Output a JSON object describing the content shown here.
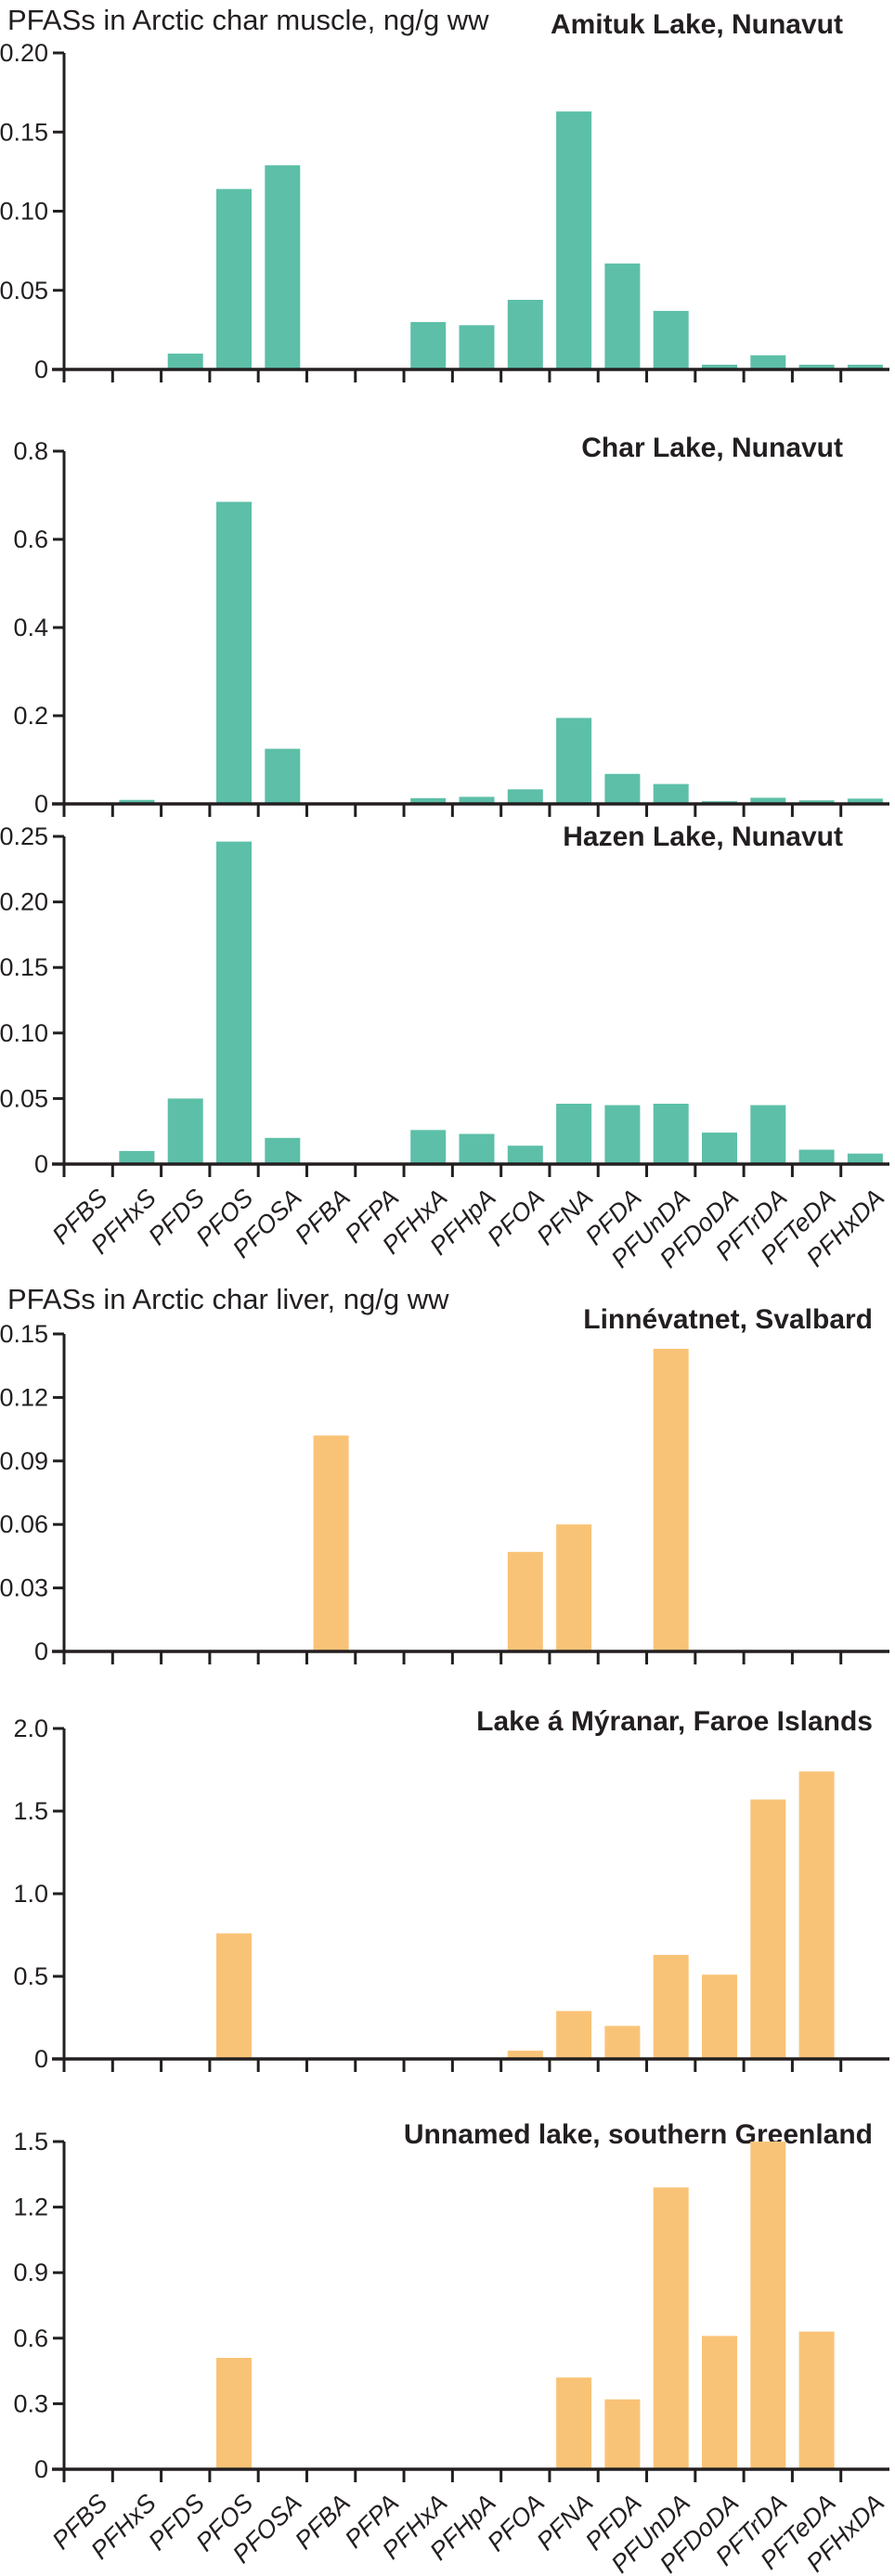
{
  "sections": [
    {
      "title": "PFASs in Arctic char muscle, ng/g ww"
    },
    {
      "title": "PFASs in Arctic char liver, ng/g ww"
    }
  ],
  "categories": [
    "PFBS",
    "PFHxS",
    "PFDS",
    "PFOS",
    "PFOSA",
    "PFBA",
    "PFPA",
    "PFHxA",
    "PFHpA",
    "PFOA",
    "PFNA",
    "PFDA",
    "PFUnDA",
    "PFDoDA",
    "PFTrDA",
    "PFTeDA",
    "PFHxDA"
  ],
  "colors": {
    "muscle_bar": "#5dbfa7",
    "liver_bar": "#f9c377",
    "axis": "#231f20",
    "text": "#231f20",
    "background": "#ffffff"
  },
  "chart_data": [
    {
      "type": "bar",
      "title": "Amituk Lake, Nunavut",
      "tissue": "muscle",
      "ylabel": "PFASs in Arctic char muscle, ng/g ww",
      "bar_color": "#5dbfa7",
      "ymax": 0.2,
      "ylim": [
        0,
        0.2
      ],
      "yticks": [
        0,
        0.05,
        0.1,
        0.15,
        0.2
      ],
      "ytick_labels": [
        "0",
        "0.05",
        "0.10",
        "0.15",
        "0.20"
      ],
      "show_x_labels": false,
      "values": [
        0,
        0,
        0.01,
        0.114,
        0.129,
        0,
        0,
        0.03,
        0.028,
        0.044,
        0.163,
        0.067,
        0.037,
        0.003,
        0.009,
        0.003,
        0.003
      ]
    },
    {
      "type": "bar",
      "title": "Char Lake, Nunavut",
      "tissue": "muscle",
      "bar_color": "#5dbfa7",
      "ymax": 0.8,
      "ylim": [
        0,
        0.8
      ],
      "yticks": [
        0,
        0.2,
        0.4,
        0.6,
        0.8
      ],
      "ytick_labels": [
        "0",
        "0.2",
        "0.4",
        "0.6",
        "0.8"
      ],
      "show_x_labels": false,
      "values": [
        0,
        0.009,
        0,
        0.685,
        0.125,
        0,
        0,
        0.013,
        0.016,
        0.033,
        0.195,
        0.068,
        0.045,
        0.006,
        0.014,
        0.008,
        0.012
      ]
    },
    {
      "type": "bar",
      "title": "Hazen Lake, Nunavut",
      "tissue": "muscle",
      "bar_color": "#5dbfa7",
      "ymax": 0.25,
      "ylim": [
        0,
        0.25
      ],
      "yticks": [
        0,
        0.05,
        0.1,
        0.15,
        0.2,
        0.25
      ],
      "ytick_labels": [
        "0",
        "0.05",
        "0.10",
        "0.15",
        "0.20",
        "0.25"
      ],
      "show_x_labels": true,
      "values": [
        0,
        0.01,
        0.05,
        0.246,
        0.02,
        0,
        0,
        0.026,
        0.023,
        0.014,
        0.046,
        0.045,
        0.046,
        0.024,
        0.045,
        0.011,
        0.008
      ]
    },
    {
      "type": "bar",
      "title": "Linnévatnet, Svalbard",
      "tissue": "liver",
      "ylabel": "PFASs in Arctic char liver, ng/g ww",
      "bar_color": "#f9c377",
      "ymax": 0.15,
      "ylim": [
        0,
        0.15
      ],
      "yticks": [
        0,
        0.03,
        0.06,
        0.09,
        0.12,
        0.15
      ],
      "ytick_labels": [
        "0",
        "0.03",
        "0.06",
        "0.09",
        "0.12",
        "0.15"
      ],
      "show_x_labels": false,
      "values": [
        0,
        0,
        0,
        0,
        0,
        0.102,
        0,
        0,
        0,
        0.047,
        0.06,
        0,
        0.143,
        0,
        0,
        0,
        0
      ]
    },
    {
      "type": "bar",
      "title": "Lake á Mýranar, Faroe Islands",
      "tissue": "liver",
      "bar_color": "#f9c377",
      "ymax": 2.0,
      "ylim": [
        0,
        2.0
      ],
      "yticks": [
        0,
        0.5,
        1.0,
        1.5,
        2.0
      ],
      "ytick_labels": [
        "0",
        "0.5",
        "1.0",
        "1.5",
        "2.0"
      ],
      "show_x_labels": false,
      "values": [
        0,
        0,
        0,
        0.76,
        0,
        0,
        0,
        0,
        0,
        0.05,
        0.29,
        0.2,
        0.63,
        0.51,
        1.57,
        1.74,
        0
      ]
    },
    {
      "type": "bar",
      "title": "Unnamed lake, southern Greenland",
      "tissue": "liver",
      "bar_color": "#f9c377",
      "ymax": 1.5,
      "ylim": [
        0,
        1.5
      ],
      "yticks": [
        0,
        0.3,
        0.6,
        0.9,
        1.2,
        1.5
      ],
      "ytick_labels": [
        "0",
        "0.3",
        "0.6",
        "0.9",
        "1.2",
        "1.5"
      ],
      "show_x_labels": true,
      "values": [
        0,
        0,
        0,
        0.51,
        0,
        0,
        0,
        0,
        0,
        0,
        0.42,
        0.32,
        1.29,
        0.61,
        1.5,
        0.63,
        0
      ]
    }
  ]
}
